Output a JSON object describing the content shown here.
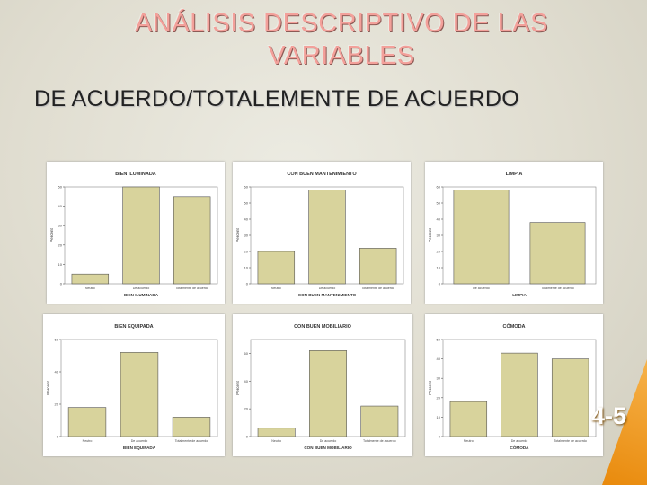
{
  "slide": {
    "title_line1": "ANÁLISIS DESCRIPTIVO DE LAS",
    "title_line2": "VARIABLES",
    "subtitle": "DE ACUERDO/TOTALEMENTE DE ACUERDO",
    "page_number": "4-5"
  },
  "chart_data": [
    {
      "type": "bar",
      "title": "BIEN ILUMINADA",
      "xlabel": "BIEN ILUMINADA",
      "ylabel": "Percent",
      "categories": [
        "Neutro",
        "De acuerdo",
        "Totalmente de acuerdo"
      ],
      "values": [
        5,
        50,
        45
      ],
      "ylim": [
        0,
        50
      ],
      "yticks": [
        "0",
        "10",
        "20",
        "30",
        "40",
        "50"
      ],
      "bar_color": "#d8d39c"
    },
    {
      "type": "bar",
      "title": "CON BUEN MANTENIMIENTO",
      "xlabel": "CON BUEN MANTENIMIENTO",
      "ylabel": "Percent",
      "categories": [
        "Neutro",
        "De acuerdo",
        "Totalmente de acuerdo"
      ],
      "values": [
        20,
        58,
        22
      ],
      "ylim": [
        0,
        60
      ],
      "yticks": [
        "0",
        "10",
        "20",
        "30",
        "40",
        "50",
        "60"
      ],
      "bar_color": "#d8d39c"
    },
    {
      "type": "bar",
      "title": "LIMPIA",
      "xlabel": "LIMPIA",
      "ylabel": "Percent",
      "categories": [
        "De acuerdo",
        "Totalmente de acuerdo"
      ],
      "values": [
        58,
        38
      ],
      "ylim": [
        0,
        60
      ],
      "yticks": [
        "0",
        "10",
        "20",
        "30",
        "40",
        "50",
        "60"
      ],
      "bar_color": "#d8d39c"
    },
    {
      "type": "bar",
      "title": "BIEN EQUIPADA",
      "xlabel": "BIEN EQUIPADA",
      "ylabel": "Percent",
      "categories": [
        "Neutro",
        "De acuerdo",
        "Totalmente de acuerdo"
      ],
      "values": [
        18,
        52,
        12
      ],
      "ylim": [
        0,
        60
      ],
      "yticks": [
        "0",
        "20",
        "40",
        "60"
      ],
      "bar_color": "#d8d39c"
    },
    {
      "type": "bar",
      "title": "CON BUEN MOBILIARIO",
      "xlabel": "CON BUEN MOBILIARIO",
      "ylabel": "Percent",
      "categories": [
        "Neutro",
        "De acuerdo",
        "Totalmente de acuerdo"
      ],
      "values": [
        6,
        62,
        22
      ],
      "ylim": [
        0,
        70
      ],
      "yticks": [
        "0",
        "20",
        "40",
        "60"
      ],
      "bar_color": "#d8d39c"
    },
    {
      "type": "bar",
      "title": "CÓMODA",
      "xlabel": "CÓMODA",
      "ylabel": "Percent",
      "categories": [
        "Neutro",
        "De acuerdo",
        "Totalmente de acuerdo"
      ],
      "values": [
        18,
        43,
        40
      ],
      "ylim": [
        0,
        50
      ],
      "yticks": [
        "0",
        "10",
        "20",
        "30",
        "40",
        "50"
      ],
      "bar_color": "#d8d39c"
    }
  ]
}
